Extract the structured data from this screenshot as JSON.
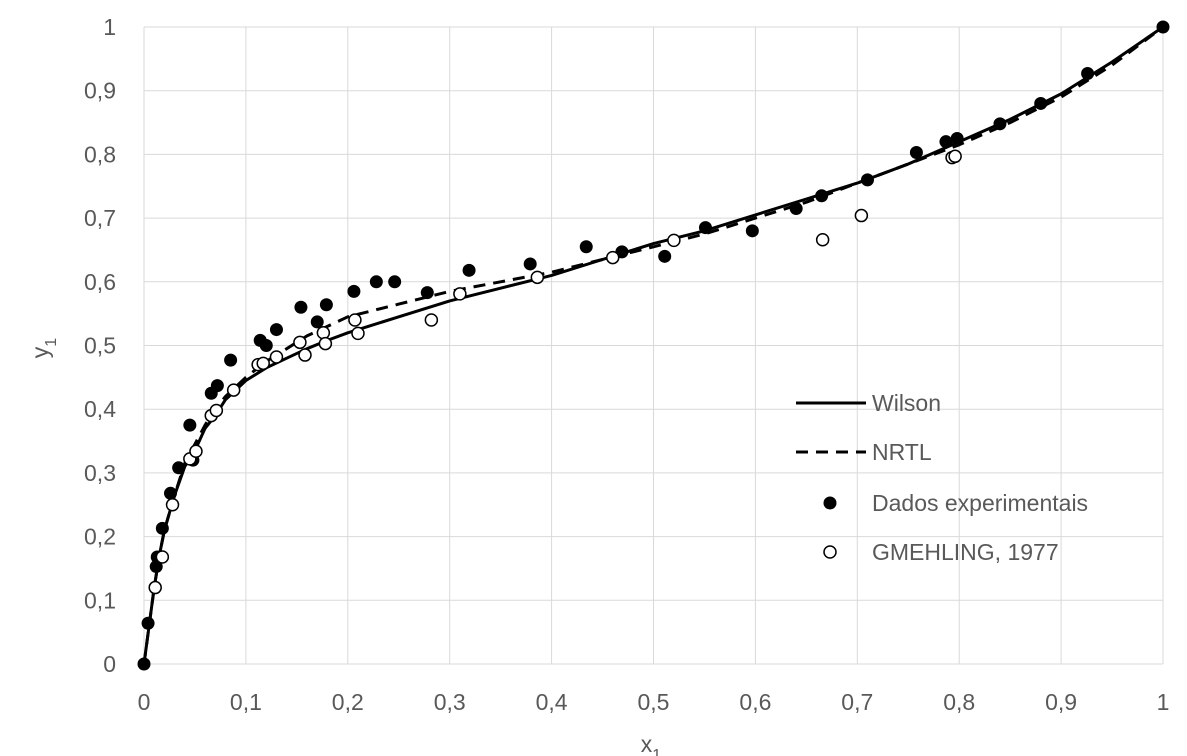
{
  "chart_data": {
    "type": "scatter",
    "title": "",
    "xlabel": "x",
    "xlabel_sub": "1",
    "ylabel": "y",
    "ylabel_sub": "1",
    "xlim": [
      0,
      1
    ],
    "ylim": [
      0,
      1
    ],
    "grid": true,
    "legend_position": "right",
    "x_ticks": [
      0,
      0.1,
      0.2,
      0.3,
      0.4,
      0.5,
      0.6,
      0.7,
      0.8,
      0.9,
      1
    ],
    "x_tick_labels": [
      "0",
      "0,1",
      "0,2",
      "0,3",
      "0,4",
      "0,5",
      "0,6",
      "0,7",
      "0,8",
      "0,9",
      "1"
    ],
    "y_ticks": [
      0,
      0.1,
      0.2,
      0.3,
      0.4,
      0.5,
      0.6,
      0.7,
      0.8,
      0.9,
      1
    ],
    "y_tick_labels": [
      "0",
      "0,1",
      "0,2",
      "0,3",
      "0,4",
      "0,5",
      "0,6",
      "0,7",
      "0,8",
      "0,9",
      "1"
    ],
    "series": [
      {
        "name": "Wilson",
        "kind": "line",
        "style": "solid",
        "color": "#000000",
        "points": [
          [
            0,
            0
          ],
          [
            0.005,
            0.06
          ],
          [
            0.01,
            0.12
          ],
          [
            0.015,
            0.17
          ],
          [
            0.02,
            0.21
          ],
          [
            0.03,
            0.265
          ],
          [
            0.04,
            0.31
          ],
          [
            0.05,
            0.335
          ],
          [
            0.06,
            0.37
          ],
          [
            0.07,
            0.39
          ],
          [
            0.08,
            0.415
          ],
          [
            0.09,
            0.43
          ],
          [
            0.1,
            0.445
          ],
          [
            0.12,
            0.465
          ],
          [
            0.14,
            0.48
          ],
          [
            0.16,
            0.495
          ],
          [
            0.18,
            0.508
          ],
          [
            0.2,
            0.52
          ],
          [
            0.25,
            0.545
          ],
          [
            0.3,
            0.57
          ],
          [
            0.35,
            0.59
          ],
          [
            0.4,
            0.61
          ],
          [
            0.45,
            0.635
          ],
          [
            0.5,
            0.66
          ],
          [
            0.55,
            0.68
          ],
          [
            0.6,
            0.705
          ],
          [
            0.65,
            0.73
          ],
          [
            0.7,
            0.755
          ],
          [
            0.75,
            0.785
          ],
          [
            0.8,
            0.82
          ],
          [
            0.85,
            0.855
          ],
          [
            0.9,
            0.895
          ],
          [
            0.95,
            0.945
          ],
          [
            1,
            1
          ]
        ]
      },
      {
        "name": "NRTL",
        "kind": "line",
        "style": "dashed",
        "color": "#000000",
        "points": [
          [
            0,
            0
          ],
          [
            0.005,
            0.06
          ],
          [
            0.01,
            0.12
          ],
          [
            0.015,
            0.17
          ],
          [
            0.02,
            0.21
          ],
          [
            0.03,
            0.265
          ],
          [
            0.04,
            0.315
          ],
          [
            0.05,
            0.345
          ],
          [
            0.06,
            0.375
          ],
          [
            0.07,
            0.4
          ],
          [
            0.08,
            0.42
          ],
          [
            0.09,
            0.435
          ],
          [
            0.1,
            0.45
          ],
          [
            0.12,
            0.475
          ],
          [
            0.14,
            0.495
          ],
          [
            0.16,
            0.515
          ],
          [
            0.18,
            0.53
          ],
          [
            0.2,
            0.545
          ],
          [
            0.25,
            0.565
          ],
          [
            0.3,
            0.585
          ],
          [
            0.35,
            0.6
          ],
          [
            0.4,
            0.615
          ],
          [
            0.45,
            0.635
          ],
          [
            0.5,
            0.655
          ],
          [
            0.55,
            0.675
          ],
          [
            0.6,
            0.7
          ],
          [
            0.65,
            0.725
          ],
          [
            0.7,
            0.755
          ],
          [
            0.75,
            0.785
          ],
          [
            0.8,
            0.815
          ],
          [
            0.85,
            0.85
          ],
          [
            0.9,
            0.89
          ],
          [
            0.95,
            0.94
          ],
          [
            1,
            1
          ]
        ]
      },
      {
        "name": "Dados experimentais",
        "kind": "points",
        "marker": "filled-circle",
        "color": "#000000",
        "points": [
          [
            0,
            0
          ],
          [
            0.004,
            0.064
          ],
          [
            0.012,
            0.153
          ],
          [
            0.013,
            0.168
          ],
          [
            0.018,
            0.213
          ],
          [
            0.026,
            0.268
          ],
          [
            0.034,
            0.308
          ],
          [
            0.045,
            0.375
          ],
          [
            0.048,
            0.32
          ],
          [
            0.066,
            0.425
          ],
          [
            0.072,
            0.437
          ],
          [
            0.085,
            0.477
          ],
          [
            0.114,
            0.508
          ],
          [
            0.12,
            0.5
          ],
          [
            0.13,
            0.525
          ],
          [
            0.154,
            0.56
          ],
          [
            0.17,
            0.537
          ],
          [
            0.179,
            0.564
          ],
          [
            0.206,
            0.585
          ],
          [
            0.228,
            0.6
          ],
          [
            0.246,
            0.6
          ],
          [
            0.278,
            0.583
          ],
          [
            0.319,
            0.618
          ],
          [
            0.379,
            0.628
          ],
          [
            0.434,
            0.655
          ],
          [
            0.469,
            0.647
          ],
          [
            0.511,
            0.64
          ],
          [
            0.551,
            0.685
          ],
          [
            0.597,
            0.68
          ],
          [
            0.64,
            0.715
          ],
          [
            0.665,
            0.735
          ],
          [
            0.71,
            0.76
          ],
          [
            0.758,
            0.803
          ],
          [
            0.787,
            0.82
          ],
          [
            0.798,
            0.825
          ],
          [
            0.84,
            0.848
          ],
          [
            0.88,
            0.88
          ],
          [
            0.926,
            0.927
          ],
          [
            1,
            1
          ]
        ]
      },
      {
        "name": "GMEHLING, 1977",
        "kind": "points",
        "marker": "open-circle",
        "color": "#000000",
        "points": [
          [
            0.011,
            0.12
          ],
          [
            0.018,
            0.168
          ],
          [
            0.028,
            0.25
          ],
          [
            0.045,
            0.322
          ],
          [
            0.051,
            0.334
          ],
          [
            0.066,
            0.39
          ],
          [
            0.071,
            0.398
          ],
          [
            0.088,
            0.43
          ],
          [
            0.112,
            0.47
          ],
          [
            0.117,
            0.472
          ],
          [
            0.13,
            0.482
          ],
          [
            0.153,
            0.505
          ],
          [
            0.158,
            0.485
          ],
          [
            0.176,
            0.52
          ],
          [
            0.178,
            0.503
          ],
          [
            0.207,
            0.54
          ],
          [
            0.21,
            0.519
          ],
          [
            0.282,
            0.54
          ],
          [
            0.31,
            0.581
          ],
          [
            0.386,
            0.607
          ],
          [
            0.46,
            0.638
          ],
          [
            0.52,
            0.665
          ],
          [
            0.666,
            0.666
          ],
          [
            0.704,
            0.704
          ],
          [
            0.793,
            0.795
          ],
          [
            0.796,
            0.797
          ]
        ]
      }
    ]
  }
}
